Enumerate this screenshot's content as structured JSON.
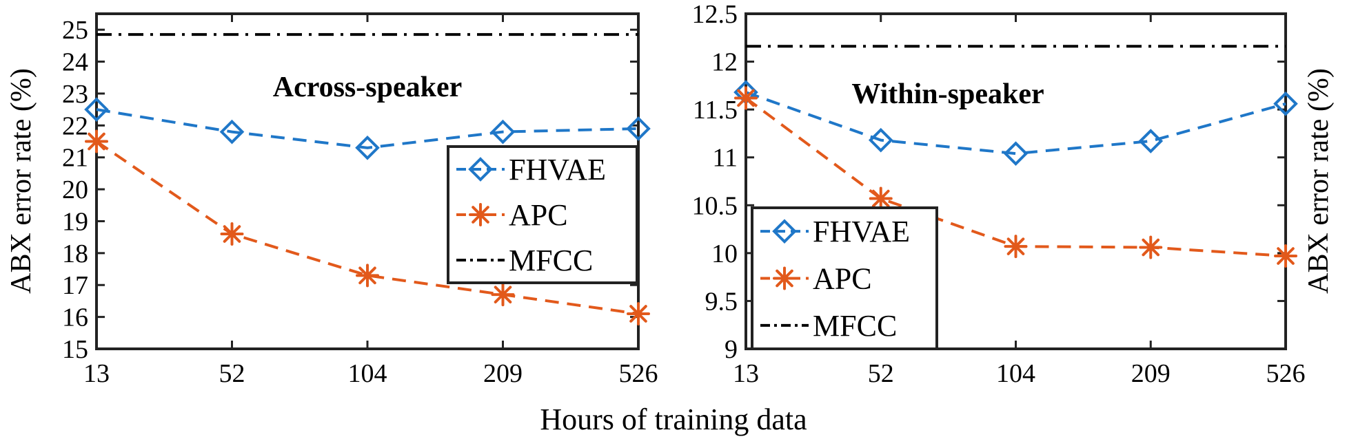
{
  "xlabel": "Hours of training data",
  "legend_colors": {
    "FHVAE": "#1f77c8",
    "APC": "#e2591b",
    "MFCC": "#000000"
  },
  "chart_data": [
    {
      "type": "line",
      "title": "Across-speaker",
      "xlabel": "Hours of training data",
      "ylabel": "ABX error rate (%)",
      "categories": [
        "13",
        "52",
        "104",
        "209",
        "526"
      ],
      "ylim": [
        15,
        25.5
      ],
      "yticks": [
        "15",
        "16",
        "17",
        "18",
        "19",
        "20",
        "21",
        "22",
        "23",
        "24",
        "25"
      ],
      "legend_position": "center-right",
      "series": [
        {
          "name": "FHVAE",
          "values": [
            22.5,
            21.8,
            21.3,
            21.8,
            21.9
          ],
          "style": "dashed",
          "marker": "diamond",
          "color": "#1f77c8"
        },
        {
          "name": "APC",
          "values": [
            21.5,
            18.6,
            17.3,
            16.7,
            16.1
          ],
          "style": "dashed",
          "marker": "asterisk",
          "color": "#e2591b"
        },
        {
          "name": "MFCC",
          "values": [
            24.85,
            24.85,
            24.85,
            24.85,
            24.85
          ],
          "style": "dashdot",
          "marker": "none",
          "color": "#000000"
        }
      ]
    },
    {
      "type": "line",
      "title": "Within-speaker",
      "xlabel": "Hours of training data",
      "ylabel": "ABX error rate (%)",
      "categories": [
        "13",
        "52",
        "104",
        "209",
        "526"
      ],
      "ylim": [
        9,
        12.5
      ],
      "yticks": [
        "9",
        "9.5",
        "10",
        "10.5",
        "11",
        "11.5",
        "12",
        "12.5"
      ],
      "legend_position": "bottom-left",
      "series": [
        {
          "name": "FHVAE",
          "values": [
            11.68,
            11.18,
            11.04,
            11.17,
            11.56
          ],
          "style": "dashed",
          "marker": "diamond",
          "color": "#1f77c8"
        },
        {
          "name": "APC",
          "values": [
            11.62,
            10.57,
            10.07,
            10.06,
            9.97
          ],
          "style": "dashed",
          "marker": "asterisk",
          "color": "#e2591b"
        },
        {
          "name": "MFCC",
          "values": [
            12.16,
            12.16,
            12.16,
            12.16,
            12.16
          ],
          "style": "dashdot",
          "marker": "none",
          "color": "#000000"
        }
      ]
    }
  ]
}
